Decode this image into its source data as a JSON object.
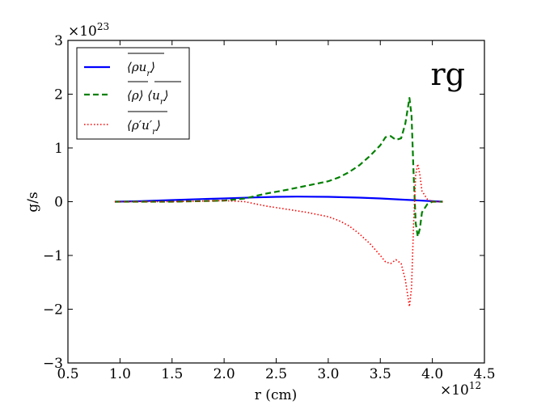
{
  "chart_data": {
    "type": "line",
    "title": "",
    "annotation": "rg",
    "xlabel": "r (cm)",
    "ylabel": "g/s",
    "xlim": [
      0.5,
      4.5
    ],
    "ylim": [
      -3,
      3
    ],
    "x_multiplier": "×10^12",
    "y_multiplier": "×10^23",
    "x_ticks": [
      0.5,
      1.0,
      1.5,
      2.0,
      2.5,
      3.0,
      3.5,
      4.0,
      4.5
    ],
    "x_tick_labels": [
      "0.5",
      "1.0",
      "1.5",
      "2.0",
      "2.5",
      "3.0",
      "3.5",
      "4.0",
      "4.5"
    ],
    "y_ticks": [
      -3,
      -2,
      -1,
      0,
      1,
      2,
      3
    ],
    "y_tick_labels": [
      "−3",
      "−2",
      "−1",
      "0",
      "1",
      "2",
      "3"
    ],
    "legend_position": "top-left",
    "series": [
      {
        "name": "⟨ρ u_r⟩ (mean)",
        "legend_tex": "rho_ur",
        "color": "#0000ff",
        "style": "solid",
        "points": [
          [
            0.95,
            0.0
          ],
          [
            1.2,
            0.01
          ],
          [
            1.5,
            0.03
          ],
          [
            1.8,
            0.05
          ],
          [
            2.0,
            0.06
          ],
          [
            2.3,
            0.08
          ],
          [
            2.5,
            0.09
          ],
          [
            2.7,
            0.095
          ],
          [
            3.0,
            0.09
          ],
          [
            3.3,
            0.075
          ],
          [
            3.5,
            0.06
          ],
          [
            3.7,
            0.04
          ],
          [
            3.8,
            0.03
          ],
          [
            3.9,
            0.02
          ],
          [
            4.0,
            0.01
          ],
          [
            4.1,
            0.0
          ]
        ]
      },
      {
        "name": "⟨ρ⟩ ⟨u_r⟩ (means)",
        "legend_tex": "rho_mean_ur_mean",
        "color": "#008000",
        "style": "dashed",
        "points": [
          [
            0.95,
            0.0
          ],
          [
            1.5,
            0.0
          ],
          [
            2.0,
            0.02
          ],
          [
            2.2,
            0.06
          ],
          [
            2.4,
            0.15
          ],
          [
            2.6,
            0.22
          ],
          [
            2.8,
            0.3
          ],
          [
            3.0,
            0.38
          ],
          [
            3.1,
            0.45
          ],
          [
            3.2,
            0.55
          ],
          [
            3.3,
            0.68
          ],
          [
            3.4,
            0.85
          ],
          [
            3.5,
            1.05
          ],
          [
            3.55,
            1.2
          ],
          [
            3.6,
            1.22
          ],
          [
            3.65,
            1.15
          ],
          [
            3.7,
            1.18
          ],
          [
            3.74,
            1.45
          ],
          [
            3.78,
            1.93
          ],
          [
            3.8,
            1.6
          ],
          [
            3.82,
            0.5
          ],
          [
            3.84,
            -0.4
          ],
          [
            3.86,
            -0.65
          ],
          [
            3.88,
            -0.5
          ],
          [
            3.9,
            -0.2
          ],
          [
            3.95,
            -0.05
          ],
          [
            4.0,
            0.0
          ],
          [
            4.1,
            0.0
          ]
        ]
      },
      {
        "name": "⟨ρ' u'_r⟩ (mean)",
        "legend_tex": "rho_prime_ur_prime",
        "color": "#ff0000",
        "style": "dotted",
        "points": [
          [
            0.95,
            0.0
          ],
          [
            1.5,
            0.0
          ],
          [
            2.0,
            0.02
          ],
          [
            2.2,
            0.0
          ],
          [
            2.4,
            -0.08
          ],
          [
            2.6,
            -0.14
          ],
          [
            2.8,
            -0.2
          ],
          [
            3.0,
            -0.28
          ],
          [
            3.1,
            -0.35
          ],
          [
            3.2,
            -0.45
          ],
          [
            3.3,
            -0.6
          ],
          [
            3.4,
            -0.78
          ],
          [
            3.5,
            -1.0
          ],
          [
            3.55,
            -1.12
          ],
          [
            3.6,
            -1.15
          ],
          [
            3.65,
            -1.08
          ],
          [
            3.7,
            -1.15
          ],
          [
            3.74,
            -1.45
          ],
          [
            3.78,
            -1.95
          ],
          [
            3.8,
            -1.6
          ],
          [
            3.82,
            -0.4
          ],
          [
            3.84,
            0.5
          ],
          [
            3.86,
            0.7
          ],
          [
            3.88,
            0.5
          ],
          [
            3.9,
            0.2
          ],
          [
            3.95,
            0.05
          ],
          [
            4.0,
            0.0
          ],
          [
            4.1,
            0.0
          ]
        ]
      }
    ]
  }
}
